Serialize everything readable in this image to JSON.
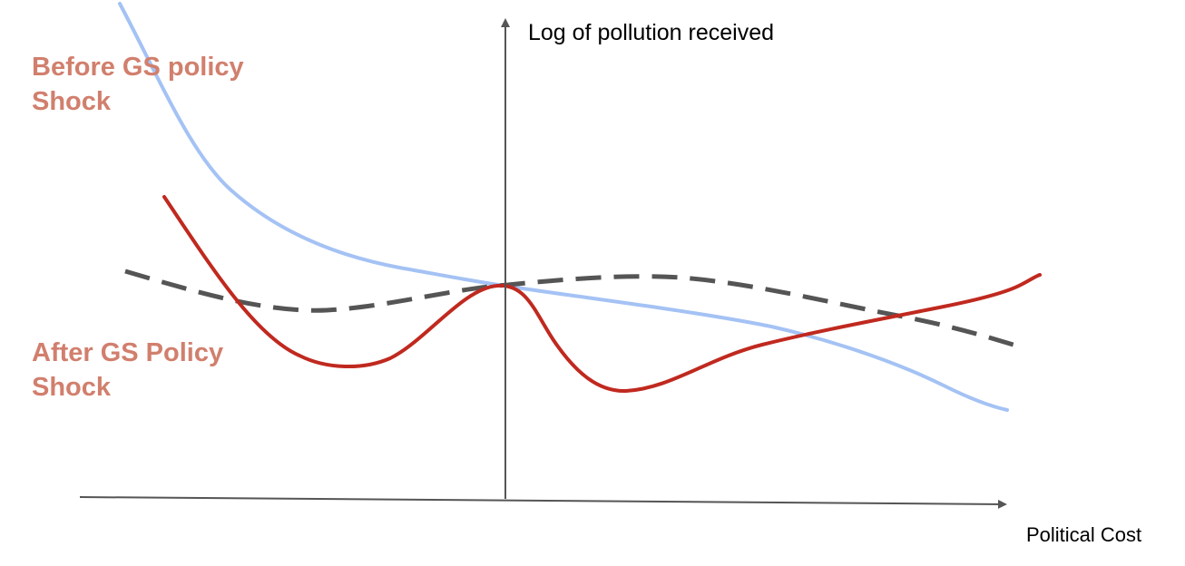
{
  "labels": {
    "before_line1": "Before GS policy",
    "before_line2": "Shock",
    "after_line1": "After GS Policy",
    "after_line2": "Shock",
    "y_axis": "Log of pollution received",
    "x_axis": "Political Cost"
  },
  "colors": {
    "before_curve": "#a4c2f4",
    "after_curve": "#c0291f",
    "dashed_curve": "#555555",
    "axis": "#555555",
    "label_text": "#d17f6d"
  }
}
